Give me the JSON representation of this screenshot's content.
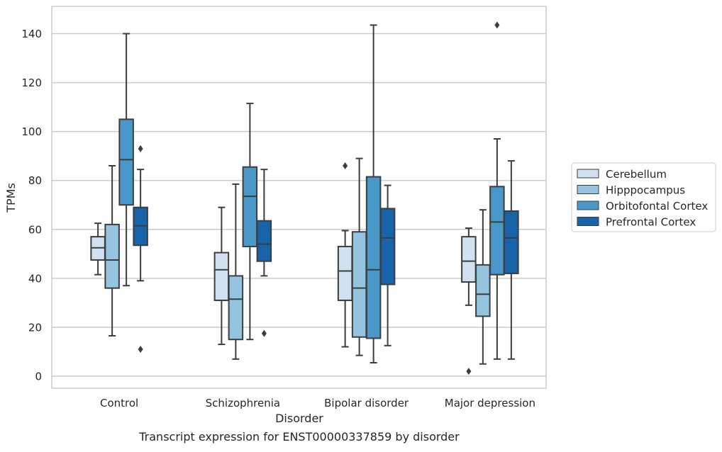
{
  "chart_data": {
    "type": "box",
    "caption": "Transcript expression for ENST00000337859 by disorder",
    "xlabel": "Disorder",
    "ylabel": "TPMs",
    "ylim": [
      -5,
      151
    ],
    "yticks": [
      0,
      20,
      40,
      60,
      80,
      100,
      120,
      140
    ],
    "grid": true,
    "legend_position": "right",
    "categories": [
      "Control",
      "Schizophrenia",
      "Bipolar disorder",
      "Major depression"
    ],
    "series": [
      {
        "name": "Cerebellum",
        "color": "#d0e1f2",
        "boxes": [
          {
            "whisker_low": 41.5,
            "q1": 47.5,
            "median": 52.5,
            "q3": 57,
            "whisker_high": 62.5,
            "outliers": []
          },
          {
            "whisker_low": 13,
            "q1": 31,
            "median": 43.5,
            "q3": 50.5,
            "whisker_high": 69,
            "outliers": []
          },
          {
            "whisker_low": 12,
            "q1": 31,
            "median": 43,
            "q3": 53,
            "whisker_high": 59.5,
            "outliers": [
              86
            ]
          },
          {
            "whisker_low": 29,
            "q1": 38.5,
            "median": 47,
            "q3": 57,
            "whisker_high": 60.5,
            "outliers": [
              2
            ]
          }
        ]
      },
      {
        "name": "Hipppocampus",
        "color": "#94c4df",
        "boxes": [
          {
            "whisker_low": 16.5,
            "q1": 36,
            "median": 47.5,
            "q3": 62,
            "whisker_high": 86,
            "outliers": []
          },
          {
            "whisker_low": 7,
            "q1": 15,
            "median": 31.5,
            "q3": 41,
            "whisker_high": 78.5,
            "outliers": []
          },
          {
            "whisker_low": 8.5,
            "q1": 16,
            "median": 36,
            "q3": 59,
            "whisker_high": 89,
            "outliers": []
          },
          {
            "whisker_low": 5,
            "q1": 24.5,
            "median": 33.5,
            "q3": 45.5,
            "whisker_high": 68,
            "outliers": []
          }
        ]
      },
      {
        "name": "Orbitofontal Cortex",
        "color": "#4a98c9",
        "boxes": [
          {
            "whisker_low": 37,
            "q1": 70,
            "median": 88.5,
            "q3": 105,
            "whisker_high": 140,
            "outliers": []
          },
          {
            "whisker_low": 15,
            "q1": 53,
            "median": 73.5,
            "q3": 85.5,
            "whisker_high": 111.5,
            "outliers": []
          },
          {
            "whisker_low": 5.5,
            "q1": 15.5,
            "median": 43.5,
            "q3": 81.5,
            "whisker_high": 143.5,
            "outliers": []
          },
          {
            "whisker_low": 7,
            "q1": 41.5,
            "median": 63,
            "q3": 77.5,
            "whisker_high": 97,
            "outliers": [
              143.5
            ]
          }
        ]
      },
      {
        "name": "Prefrontal Cortex",
        "color": "#1764ab",
        "boxes": [
          {
            "whisker_low": 39,
            "q1": 53.5,
            "median": 61.5,
            "q3": 69,
            "whisker_high": 84.5,
            "outliers": [
              93,
              11
            ]
          },
          {
            "whisker_low": 41,
            "q1": 47,
            "median": 54,
            "q3": 63.5,
            "whisker_high": 84.5,
            "outliers": [
              17.5
            ]
          },
          {
            "whisker_low": 12.5,
            "q1": 37.5,
            "median": 56.5,
            "q3": 68.5,
            "whisker_high": 78,
            "outliers": []
          },
          {
            "whisker_low": 7,
            "q1": 42,
            "median": 56.5,
            "q3": 67.5,
            "whisker_high": 88,
            "outliers": []
          }
        ]
      }
    ]
  }
}
